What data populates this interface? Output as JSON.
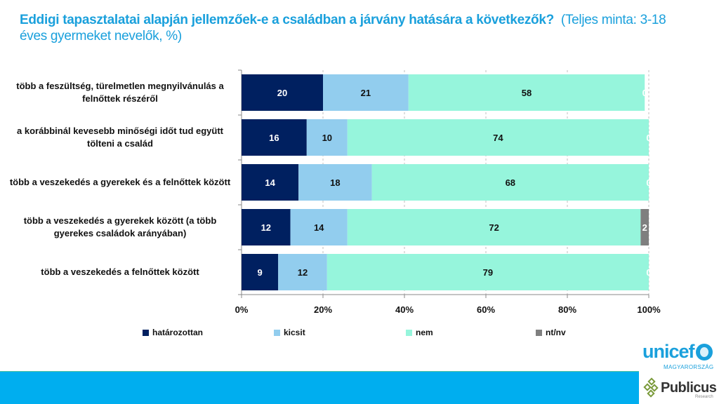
{
  "title": {
    "main": "Eddigi tapasztalatai alapján jellemzőek-e a családban a járvány hatására a következők?",
    "sub": "(Teljes minta: 3-18 éves gyermeket nevelők, %)"
  },
  "chart_data": {
    "type": "bar",
    "orientation": "horizontal",
    "stacked": "percent",
    "title": "Eddigi tapasztalatai alapján jellemzőek-e a családban a járvány hatására a következők? (Teljes minta: 3-18 éves gyermeket nevelők, %)",
    "categories": [
      "több a feszültség, türelmetlen megnyilvánulás a felnőttek részéről",
      "a korábbinál kevesebb minőségi időt tud együtt tölteni a család",
      "több a veszekedés a gyerekek és a felnőttek között",
      "több a veszekedés a gyerekek között (a több gyerekes családok arányában)",
      "több a veszekedés a felnőttek között"
    ],
    "series": [
      {
        "name": "határozottan",
        "color": "#002060",
        "label_color": "#ffffff",
        "values": [
          20,
          16,
          14,
          12,
          9
        ]
      },
      {
        "name": "kicsit",
        "color": "#92cdee",
        "label_color": "#111111",
        "values": [
          21,
          10,
          18,
          14,
          12
        ]
      },
      {
        "name": "nem",
        "color": "#96f5dc",
        "label_color": "#111111",
        "values": [
          58,
          74,
          68,
          72,
          79
        ]
      },
      {
        "name": "nt/nv",
        "color": "#7f7f7f",
        "label_color": "#ffffff",
        "values": [
          0,
          0,
          0,
          2,
          0
        ]
      }
    ],
    "xlim": [
      0,
      100
    ],
    "xticks": [
      "0%",
      "20%",
      "40%",
      "60%",
      "80%",
      "100%"
    ],
    "grid": true,
    "legend_position": "bottom"
  },
  "legend": [
    {
      "label": "határozottan",
      "color": "#002060"
    },
    {
      "label": "kicsit",
      "color": "#92cdee"
    },
    {
      "label": "nem",
      "color": "#96f5dc"
    },
    {
      "label": "nt/nv",
      "color": "#7f7f7f"
    }
  ],
  "footer": {
    "unicef": "unicef",
    "unicef_sub": "MAGYARORSZÁG",
    "publicus": "Publicus",
    "publicus_sub": "Research",
    "band_color": "#00aeef"
  }
}
